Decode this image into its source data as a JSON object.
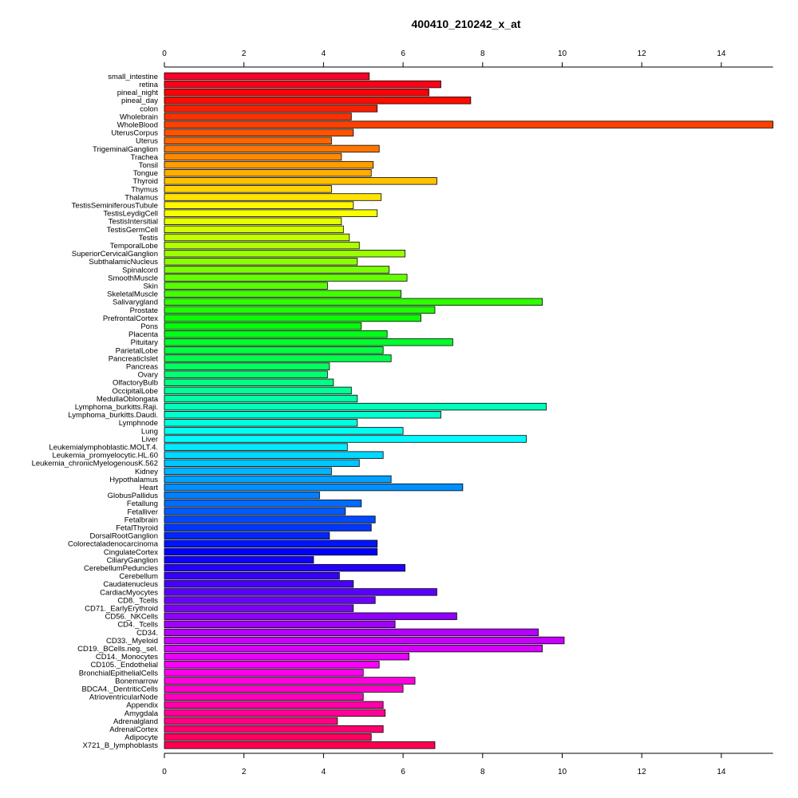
{
  "chart_data": {
    "type": "bar",
    "orientation": "horizontal",
    "title": "400410_210242_x_at",
    "xlim": [
      0,
      15.3
    ],
    "xticks": [
      0,
      2,
      4,
      6,
      8,
      10,
      12,
      14
    ],
    "categories": [
      "small_intestine",
      "retina",
      "pineal_night",
      "pineal_day",
      "colon",
      "Wholebrain",
      "WholeBlood",
      "UterusCorpus",
      "Uterus",
      "TrigeminalGanglion",
      "Trachea",
      "Tonsil",
      "Tongue",
      "Thyroid",
      "Thymus",
      "Thalamus",
      "TestisSeminiferousTubule",
      "TestisLeydigCell",
      "TestisIntersitial",
      "TestisGermCell",
      "Testis",
      "TemporalLobe",
      "SuperiorCervicalGanglion",
      "SubthalamicNucleus",
      "Spinalcord",
      "SmoothMuscle",
      "Skin",
      "SkeletalMuscle",
      "Salivarygland",
      "Prostate",
      "PrefrontalCortex",
      "Pons",
      "Placenta",
      "Pituitary",
      "ParietalLobe",
      "PancreaticIslet",
      "Pancreas",
      "Ovary",
      "OlfactoryBulb",
      "OccipitalLobe",
      "MedullaOblongata",
      "Lymphoma_burkitts.Raji.",
      "Lymphoma_burkitts.Daudi.",
      "Lymphnode",
      "Lung",
      "Liver",
      "Leukemialymphoblastic.MOLT.4.",
      "Leukemia_promyelocytic.HL.60",
      "Leukemia_chronicMyelogenousK.562",
      "Kidney",
      "Hypothalamus",
      "Heart",
      "GlobusPallidus",
      "Fetallung",
      "Fetalliver",
      "Fetalbrain",
      "FetalThyroid",
      "DorsalRootGanglion",
      "Colorectaladenocarcinoma",
      "CingulateCortex",
      "CiliaryGanglion",
      "CerebellumPeduncles",
      "Cerebellum",
      "Caudatenucleus",
      "CardiacMyocytes",
      "CD8._Tcells",
      "CD71._EarlyErythroid",
      "CD56._NKCells",
      "CD4._Tcells",
      "CD34.",
      "CD33._Myeloid",
      "CD19._BCells.neg._sel.",
      "CD14._Monocytes",
      "CD105._Endothelial",
      "BronchialEpithelialCells",
      "Bonemarrow",
      "BDCA4._DentriticCells",
      "AtrioventricularNode",
      "Appendix",
      "Amygdala",
      "Adrenalgland",
      "AdrenalCortex",
      "Adipocyte",
      "X721_B_lymphoblasts"
    ],
    "values": [
      5.15,
      6.95,
      6.65,
      7.7,
      5.35,
      4.7,
      15.3,
      4.75,
      4.2,
      5.4,
      4.45,
      5.25,
      5.2,
      6.85,
      4.2,
      5.45,
      4.75,
      5.35,
      4.45,
      4.5,
      4.65,
      4.9,
      6.05,
      4.85,
      5.65,
      6.1,
      4.1,
      5.95,
      9.5,
      6.8,
      6.45,
      4.95,
      5.6,
      7.25,
      5.5,
      5.7,
      4.15,
      4.1,
      4.25,
      4.7,
      4.85,
      9.6,
      6.95,
      4.85,
      6.0,
      9.1,
      4.6,
      5.5,
      4.9,
      4.2,
      5.7,
      7.5,
      3.9,
      4.95,
      4.55,
      5.3,
      5.2,
      4.15,
      5.35,
      5.35,
      3.75,
      6.05,
      4.4,
      4.75,
      6.85,
      5.3,
      4.75,
      7.35,
      5.8,
      9.4,
      10.05,
      9.5,
      6.15,
      5.4,
      5.0,
      6.3,
      6.0,
      5.0,
      5.5,
      5.55,
      4.35,
      5.5,
      5.2,
      6.8
    ]
  }
}
